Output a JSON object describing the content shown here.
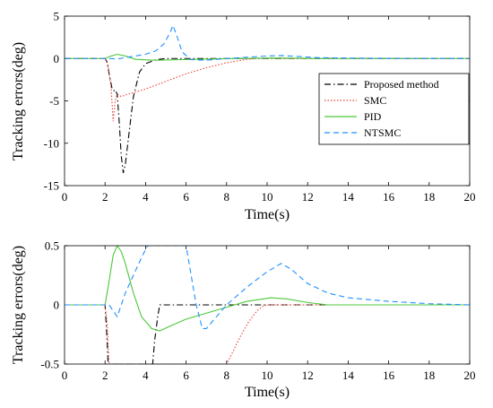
{
  "chart_data": [
    {
      "type": "line",
      "xlabel": "Time(s)",
      "ylabel": "Tracking errors(deg)",
      "xlim": [
        0,
        20
      ],
      "ylim": [
        -15,
        5
      ],
      "xticks": [
        0,
        2,
        4,
        6,
        8,
        10,
        12,
        14,
        16,
        18,
        20
      ],
      "yticks": [
        5,
        0,
        -5,
        -10,
        -15
      ],
      "legend": {
        "position": "right",
        "entries": [
          "Proposed method",
          "SMC",
          "PID",
          "NTSMC"
        ]
      },
      "series": [
        {
          "name": "Proposed method",
          "color": "#000000",
          "dash": "dashdot",
          "points": [
            [
              0,
              0
            ],
            [
              2,
              0
            ],
            [
              2.1,
              -0.4
            ],
            [
              2.2,
              -1.8
            ],
            [
              2.35,
              -3.6
            ],
            [
              2.45,
              -3.8
            ],
            [
              2.5,
              -3.7
            ],
            [
              2.6,
              -4.2
            ],
            [
              2.7,
              -7.5
            ],
            [
              2.8,
              -11.5
            ],
            [
              2.9,
              -13.5
            ],
            [
              3.0,
              -12.5
            ],
            [
              3.2,
              -8.5
            ],
            [
              3.4,
              -4.5
            ],
            [
              3.7,
              -1.6
            ],
            [
              4.0,
              -0.6
            ],
            [
              4.5,
              -0.15
            ],
            [
              5.0,
              0
            ],
            [
              20,
              0
            ]
          ]
        },
        {
          "name": "SMC",
          "color": "#e8443a",
          "dash": "dotted",
          "points": [
            [
              0,
              0
            ],
            [
              2,
              0
            ],
            [
              2.15,
              -0.8
            ],
            [
              2.3,
              -3.5
            ],
            [
              2.4,
              -7.4
            ],
            [
              2.5,
              -5.0
            ],
            [
              2.6,
              -4.2
            ],
            [
              2.8,
              -4.5
            ],
            [
              3.0,
              -4.3
            ],
            [
              4,
              -3.6
            ],
            [
              5,
              -2.7
            ],
            [
              6,
              -1.8
            ],
            [
              7,
              -1.1
            ],
            [
              8,
              -0.5
            ],
            [
              9,
              -0.1
            ],
            [
              9.5,
              0
            ],
            [
              20,
              0
            ]
          ]
        },
        {
          "name": "PID",
          "color": "#4cc83a",
          "dash": "solid",
          "points": [
            [
              0,
              0
            ],
            [
              2,
              0
            ],
            [
              2.3,
              0.3
            ],
            [
              2.6,
              0.5
            ],
            [
              3.0,
              0.3
            ],
            [
              3.5,
              -0.1
            ],
            [
              4.5,
              -0.2
            ],
            [
              6,
              -0.12
            ],
            [
              7.5,
              -0.05
            ],
            [
              8.5,
              0
            ],
            [
              9.5,
              0.03
            ],
            [
              10.2,
              0.06
            ],
            [
              11,
              0.05
            ],
            [
              12,
              0.02
            ],
            [
              13,
              0
            ],
            [
              20,
              0
            ]
          ]
        },
        {
          "name": "NTSMC",
          "color": "#1e90ff",
          "dash": "dashed",
          "points": [
            [
              0,
              0
            ],
            [
              2.2,
              0
            ],
            [
              2.6,
              -0.05
            ],
            [
              3.0,
              0.1
            ],
            [
              3.5,
              0.3
            ],
            [
              4.0,
              0.5
            ],
            [
              4.5,
              0.9
            ],
            [
              4.9,
              1.7
            ],
            [
              5.2,
              3.0
            ],
            [
              5.35,
              3.9
            ],
            [
              5.5,
              3.0
            ],
            [
              5.8,
              0.8
            ],
            [
              6.2,
              -0.1
            ],
            [
              6.6,
              -0.18
            ],
            [
              7,
              -0.2
            ],
            [
              7.5,
              -0.1
            ],
            [
              8,
              0
            ],
            [
              9,
              0.15
            ],
            [
              10,
              0.3
            ],
            [
              10.7,
              0.35
            ],
            [
              11.5,
              0.25
            ],
            [
              12.5,
              0.1
            ],
            [
              14,
              0.05
            ],
            [
              16,
              0.02
            ],
            [
              20,
              0
            ]
          ]
        }
      ]
    },
    {
      "type": "line",
      "xlabel": "Time(s)",
      "ylabel": "Tracking errors(deg)",
      "xlim": [
        0,
        20
      ],
      "ylim": [
        -0.5,
        0.5
      ],
      "xticks": [
        0,
        2,
        4,
        6,
        8,
        10,
        12,
        14,
        16,
        18,
        20
      ],
      "yticks": [
        0.5,
        0,
        -0.5
      ],
      "series": [
        {
          "name": "Proposed method",
          "color": "#000000",
          "dash": "dashdot",
          "points": [
            [
              0,
              0
            ],
            [
              2,
              0
            ],
            [
              2.1,
              -0.3
            ],
            [
              2.15,
              -0.5
            ],
            [
              4.35,
              -0.5
            ],
            [
              4.45,
              -0.3
            ],
            [
              4.6,
              -0.1
            ],
            [
              4.7,
              0
            ],
            [
              20,
              0
            ]
          ]
        },
        {
          "name": "SMC",
          "color": "#e8443a",
          "dash": "dotted",
          "points": [
            [
              0,
              0
            ],
            [
              2,
              0
            ],
            [
              2.1,
              -0.15
            ],
            [
              2.2,
              -0.5
            ],
            [
              8.0,
              -0.5
            ],
            [
              8.3,
              -0.4
            ],
            [
              8.7,
              -0.26
            ],
            [
              9.1,
              -0.14
            ],
            [
              9.5,
              -0.05
            ],
            [
              9.8,
              -0.01
            ],
            [
              10,
              0
            ],
            [
              20,
              0
            ]
          ]
        },
        {
          "name": "PID",
          "color": "#4cc83a",
          "dash": "solid",
          "points": [
            [
              0,
              0
            ],
            [
              2,
              0
            ],
            [
              2.2,
              0.2
            ],
            [
              2.4,
              0.42
            ],
            [
              2.6,
              0.5
            ],
            [
              2.8,
              0.45
            ],
            [
              3.0,
              0.35
            ],
            [
              3.4,
              0.1
            ],
            [
              3.8,
              -0.1
            ],
            [
              4.3,
              -0.2
            ],
            [
              4.7,
              -0.22
            ],
            [
              5.2,
              -0.18
            ],
            [
              6,
              -0.12
            ],
            [
              7,
              -0.07
            ],
            [
              8,
              -0.02
            ],
            [
              9,
              0.03
            ],
            [
              10.2,
              0.06
            ],
            [
              11,
              0.05
            ],
            [
              12,
              0.02
            ],
            [
              13,
              0
            ],
            [
              20,
              0
            ]
          ]
        },
        {
          "name": "NTSMC",
          "color": "#1e90ff",
          "dash": "dashed",
          "points": [
            [
              0,
              0
            ],
            [
              2.2,
              0
            ],
            [
              2.4,
              -0.05
            ],
            [
              2.6,
              -0.1
            ],
            [
              2.8,
              0
            ],
            [
              3.0,
              0.1
            ],
            [
              3.4,
              0.25
            ],
            [
              3.8,
              0.4
            ],
            [
              4.1,
              0.5
            ],
            [
              6.0,
              0.5
            ],
            [
              6.2,
              0.3
            ],
            [
              6.5,
              0
            ],
            [
              6.8,
              -0.2
            ],
            [
              7.0,
              -0.2
            ],
            [
              7.5,
              -0.1
            ],
            [
              8,
              0
            ],
            [
              9,
              0.15
            ],
            [
              10,
              0.28
            ],
            [
              10.7,
              0.35
            ],
            [
              11.2,
              0.3
            ],
            [
              12,
              0.18
            ],
            [
              13,
              0.1
            ],
            [
              14,
              0.06
            ],
            [
              16,
              0.03
            ],
            [
              18,
              0.01
            ],
            [
              20,
              0
            ]
          ]
        }
      ]
    }
  ]
}
